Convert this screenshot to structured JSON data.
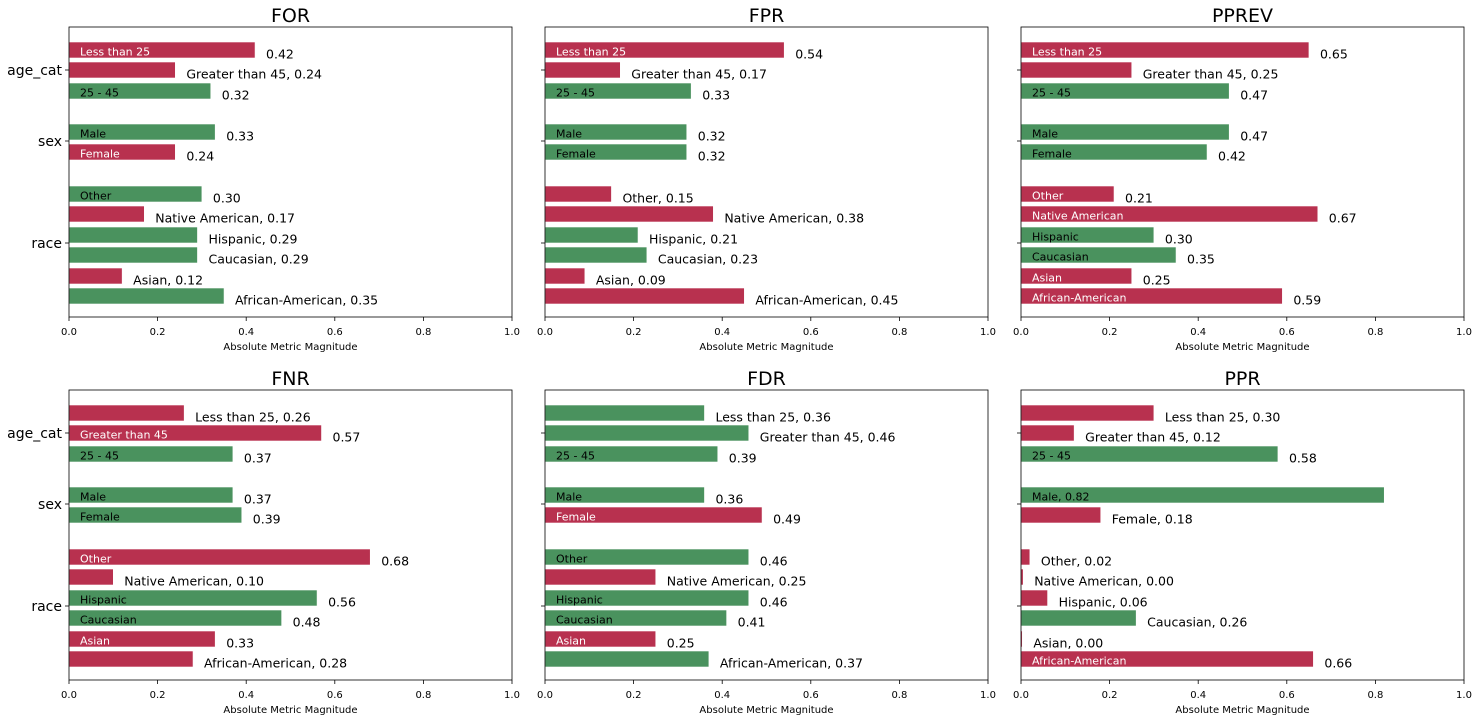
{
  "figure": {
    "xlabel": "Absolute Metric Magnitude",
    "xticks": [
      "0.0",
      "0.2",
      "0.4",
      "0.6",
      "0.8",
      "1.0"
    ],
    "group_names": [
      "age_cat",
      "sex",
      "race"
    ],
    "colors": {
      "pass": "#4a925e",
      "fail": "#b8314f",
      "pass_text": "#000000",
      "fail_text": "#ffffff"
    }
  },
  "chart_data": [
    {
      "type": "bar",
      "orientation": "horizontal",
      "title": "FOR",
      "xlim": [
        0,
        1
      ],
      "bars": [
        {
          "group": "age_cat",
          "label": "Less than 25",
          "value": 0.42,
          "status": "fail",
          "text_inside": "Less than 25",
          "text_outside": "0.42"
        },
        {
          "group": "age_cat",
          "label": "Greater than 45",
          "value": 0.24,
          "status": "fail",
          "text_inside": "",
          "text_outside": "Greater than 45, 0.24"
        },
        {
          "group": "age_cat",
          "label": "25 - 45",
          "value": 0.32,
          "status": "pass",
          "text_inside": "25 - 45",
          "text_outside": "0.32"
        },
        {
          "group": "sex",
          "label": "Male",
          "value": 0.33,
          "status": "pass",
          "text_inside": "Male",
          "text_outside": "0.33"
        },
        {
          "group": "sex",
          "label": "Female",
          "value": 0.24,
          "status": "fail",
          "text_inside": "Female",
          "text_outside": "0.24"
        },
        {
          "group": "race",
          "label": "Other",
          "value": 0.3,
          "status": "pass",
          "text_inside": "Other",
          "text_outside": "0.30"
        },
        {
          "group": "race",
          "label": "Native American",
          "value": 0.17,
          "status": "fail",
          "text_inside": "",
          "text_outside": "Native American, 0.17"
        },
        {
          "group": "race",
          "label": "Hispanic",
          "value": 0.29,
          "status": "pass",
          "text_inside": "",
          "text_outside": "Hispanic, 0.29"
        },
        {
          "group": "race",
          "label": "Caucasian",
          "value": 0.29,
          "status": "pass",
          "text_inside": "",
          "text_outside": "Caucasian, 0.29"
        },
        {
          "group": "race",
          "label": "Asian",
          "value": 0.12,
          "status": "fail",
          "text_inside": "",
          "text_outside": "Asian, 0.12"
        },
        {
          "group": "race",
          "label": "African-American",
          "value": 0.35,
          "status": "pass",
          "text_inside": "",
          "text_outside": "African-American, 0.35"
        }
      ]
    },
    {
      "type": "bar",
      "orientation": "horizontal",
      "title": "FPR",
      "xlim": [
        0,
        1
      ],
      "bars": [
        {
          "group": "age_cat",
          "label": "Less than 25",
          "value": 0.54,
          "status": "fail",
          "text_inside": "Less than 25",
          "text_outside": "0.54"
        },
        {
          "group": "age_cat",
          "label": "Greater than 45",
          "value": 0.17,
          "status": "fail",
          "text_inside": "",
          "text_outside": "Greater than 45, 0.17"
        },
        {
          "group": "age_cat",
          "label": "25 - 45",
          "value": 0.33,
          "status": "pass",
          "text_inside": "25 - 45",
          "text_outside": "0.33"
        },
        {
          "group": "sex",
          "label": "Male",
          "value": 0.32,
          "status": "pass",
          "text_inside": "Male",
          "text_outside": "0.32"
        },
        {
          "group": "sex",
          "label": "Female",
          "value": 0.32,
          "status": "pass",
          "text_inside": "Female",
          "text_outside": "0.32"
        },
        {
          "group": "race",
          "label": "Other",
          "value": 0.15,
          "status": "fail",
          "text_inside": "",
          "text_outside": "Other, 0.15"
        },
        {
          "group": "race",
          "label": "Native American",
          "value": 0.38,
          "status": "fail",
          "text_inside": "",
          "text_outside": "Native American, 0.38"
        },
        {
          "group": "race",
          "label": "Hispanic",
          "value": 0.21,
          "status": "pass",
          "text_inside": "",
          "text_outside": "Hispanic, 0.21"
        },
        {
          "group": "race",
          "label": "Caucasian",
          "value": 0.23,
          "status": "pass",
          "text_inside": "",
          "text_outside": "Caucasian, 0.23"
        },
        {
          "group": "race",
          "label": "Asian",
          "value": 0.09,
          "status": "fail",
          "text_inside": "",
          "text_outside": "Asian, 0.09"
        },
        {
          "group": "race",
          "label": "African-American",
          "value": 0.45,
          "status": "fail",
          "text_inside": "",
          "text_outside": "African-American, 0.45"
        }
      ]
    },
    {
      "type": "bar",
      "orientation": "horizontal",
      "title": "PPREV",
      "xlim": [
        0,
        1
      ],
      "bars": [
        {
          "group": "age_cat",
          "label": "Less than 25",
          "value": 0.65,
          "status": "fail",
          "text_inside": "Less than 25",
          "text_outside": "0.65"
        },
        {
          "group": "age_cat",
          "label": "Greater than 45",
          "value": 0.25,
          "status": "fail",
          "text_inside": "",
          "text_outside": "Greater than 45, 0.25"
        },
        {
          "group": "age_cat",
          "label": "25 - 45",
          "value": 0.47,
          "status": "pass",
          "text_inside": "25 - 45",
          "text_outside": "0.47"
        },
        {
          "group": "sex",
          "label": "Male",
          "value": 0.47,
          "status": "pass",
          "text_inside": "Male",
          "text_outside": "0.47"
        },
        {
          "group": "sex",
          "label": "Female",
          "value": 0.42,
          "status": "pass",
          "text_inside": "Female",
          "text_outside": "0.42"
        },
        {
          "group": "race",
          "label": "Other",
          "value": 0.21,
          "status": "fail",
          "text_inside": "Other",
          "text_outside": "0.21"
        },
        {
          "group": "race",
          "label": "Native American",
          "value": 0.67,
          "status": "fail",
          "text_inside": "Native American",
          "text_outside": "0.67"
        },
        {
          "group": "race",
          "label": "Hispanic",
          "value": 0.3,
          "status": "pass",
          "text_inside": "Hispanic",
          "text_outside": "0.30"
        },
        {
          "group": "race",
          "label": "Caucasian",
          "value": 0.35,
          "status": "pass",
          "text_inside": "Caucasian",
          "text_outside": "0.35"
        },
        {
          "group": "race",
          "label": "Asian",
          "value": 0.25,
          "status": "fail",
          "text_inside": "Asian",
          "text_outside": "0.25"
        },
        {
          "group": "race",
          "label": "African-American",
          "value": 0.59,
          "status": "fail",
          "text_inside": "African-American",
          "text_outside": "0.59"
        }
      ]
    },
    {
      "type": "bar",
      "orientation": "horizontal",
      "title": "FNR",
      "xlim": [
        0,
        1
      ],
      "bars": [
        {
          "group": "age_cat",
          "label": "Less than 25",
          "value": 0.26,
          "status": "fail",
          "text_inside": "",
          "text_outside": "Less than 25, 0.26"
        },
        {
          "group": "age_cat",
          "label": "Greater than 45",
          "value": 0.57,
          "status": "fail",
          "text_inside": "Greater than 45",
          "text_outside": "0.57"
        },
        {
          "group": "age_cat",
          "label": "25 - 45",
          "value": 0.37,
          "status": "pass",
          "text_inside": "25 - 45",
          "text_outside": "0.37"
        },
        {
          "group": "sex",
          "label": "Male",
          "value": 0.37,
          "status": "pass",
          "text_inside": "Male",
          "text_outside": "0.37"
        },
        {
          "group": "sex",
          "label": "Female",
          "value": 0.39,
          "status": "pass",
          "text_inside": "Female",
          "text_outside": "0.39"
        },
        {
          "group": "race",
          "label": "Other",
          "value": 0.68,
          "status": "fail",
          "text_inside": "Other",
          "text_outside": "0.68"
        },
        {
          "group": "race",
          "label": "Native American",
          "value": 0.1,
          "status": "fail",
          "text_inside": "",
          "text_outside": "Native American, 0.10"
        },
        {
          "group": "race",
          "label": "Hispanic",
          "value": 0.56,
          "status": "pass",
          "text_inside": "Hispanic",
          "text_outside": "0.56"
        },
        {
          "group": "race",
          "label": "Caucasian",
          "value": 0.48,
          "status": "pass",
          "text_inside": "Caucasian",
          "text_outside": "0.48"
        },
        {
          "group": "race",
          "label": "Asian",
          "value": 0.33,
          "status": "fail",
          "text_inside": "Asian",
          "text_outside": "0.33"
        },
        {
          "group": "race",
          "label": "African-American",
          "value": 0.28,
          "status": "fail",
          "text_inside": "",
          "text_outside": "African-American, 0.28"
        }
      ]
    },
    {
      "type": "bar",
      "orientation": "horizontal",
      "title": "FDR",
      "xlim": [
        0,
        1
      ],
      "bars": [
        {
          "group": "age_cat",
          "label": "Less than 25",
          "value": 0.36,
          "status": "pass",
          "text_inside": "",
          "text_outside": "Less than 25, 0.36"
        },
        {
          "group": "age_cat",
          "label": "Greater than 45",
          "value": 0.46,
          "status": "pass",
          "text_inside": "",
          "text_outside": "Greater than 45, 0.46"
        },
        {
          "group": "age_cat",
          "label": "25 - 45",
          "value": 0.39,
          "status": "pass",
          "text_inside": "25 - 45",
          "text_outside": "0.39"
        },
        {
          "group": "sex",
          "label": "Male",
          "value": 0.36,
          "status": "pass",
          "text_inside": "Male",
          "text_outside": "0.36"
        },
        {
          "group": "sex",
          "label": "Female",
          "value": 0.49,
          "status": "fail",
          "text_inside": "Female",
          "text_outside": "0.49"
        },
        {
          "group": "race",
          "label": "Other",
          "value": 0.46,
          "status": "pass",
          "text_inside": "Other",
          "text_outside": "0.46"
        },
        {
          "group": "race",
          "label": "Native American",
          "value": 0.25,
          "status": "fail",
          "text_inside": "",
          "text_outside": "Native American, 0.25"
        },
        {
          "group": "race",
          "label": "Hispanic",
          "value": 0.46,
          "status": "pass",
          "text_inside": "Hispanic",
          "text_outside": "0.46"
        },
        {
          "group": "race",
          "label": "Caucasian",
          "value": 0.41,
          "status": "pass",
          "text_inside": "Caucasian",
          "text_outside": "0.41"
        },
        {
          "group": "race",
          "label": "Asian",
          "value": 0.25,
          "status": "fail",
          "text_inside": "Asian",
          "text_outside": "0.25"
        },
        {
          "group": "race",
          "label": "African-American",
          "value": 0.37,
          "status": "pass",
          "text_inside": "",
          "text_outside": "African-American, 0.37"
        }
      ]
    },
    {
      "type": "bar",
      "orientation": "horizontal",
      "title": "PPR",
      "xlim": [
        0,
        1
      ],
      "bars": [
        {
          "group": "age_cat",
          "label": "Less than 25",
          "value": 0.3,
          "status": "fail",
          "text_inside": "",
          "text_outside": "Less than 25, 0.30"
        },
        {
          "group": "age_cat",
          "label": "Greater than 45",
          "value": 0.12,
          "status": "fail",
          "text_inside": "",
          "text_outside": "Greater than 45, 0.12"
        },
        {
          "group": "age_cat",
          "label": "25 - 45",
          "value": 0.58,
          "status": "pass",
          "text_inside": "25 - 45",
          "text_outside": "0.58"
        },
        {
          "group": "sex",
          "label": "Male",
          "value": 0.82,
          "status": "pass",
          "text_inside": "Male, 0.82",
          "text_outside": ""
        },
        {
          "group": "sex",
          "label": "Female",
          "value": 0.18,
          "status": "fail",
          "text_inside": "",
          "text_outside": "Female, 0.18"
        },
        {
          "group": "race",
          "label": "Other",
          "value": 0.02,
          "status": "fail",
          "text_inside": "",
          "text_outside": "Other, 0.02"
        },
        {
          "group": "race",
          "label": "Native American",
          "value": 0.005,
          "status": "fail",
          "text_inside": "",
          "text_outside": "Native American, 0.00"
        },
        {
          "group": "race",
          "label": "Hispanic",
          "value": 0.06,
          "status": "fail",
          "text_inside": "",
          "text_outside": "Hispanic, 0.06"
        },
        {
          "group": "race",
          "label": "Caucasian",
          "value": 0.26,
          "status": "pass",
          "text_inside": "",
          "text_outside": "Caucasian, 0.26"
        },
        {
          "group": "race",
          "label": "Asian",
          "value": 0.003,
          "status": "fail",
          "text_inside": "",
          "text_outside": "Asian, 0.00"
        },
        {
          "group": "race",
          "label": "African-American",
          "value": 0.66,
          "status": "fail",
          "text_inside": "African-American",
          "text_outside": "0.66"
        }
      ]
    }
  ]
}
